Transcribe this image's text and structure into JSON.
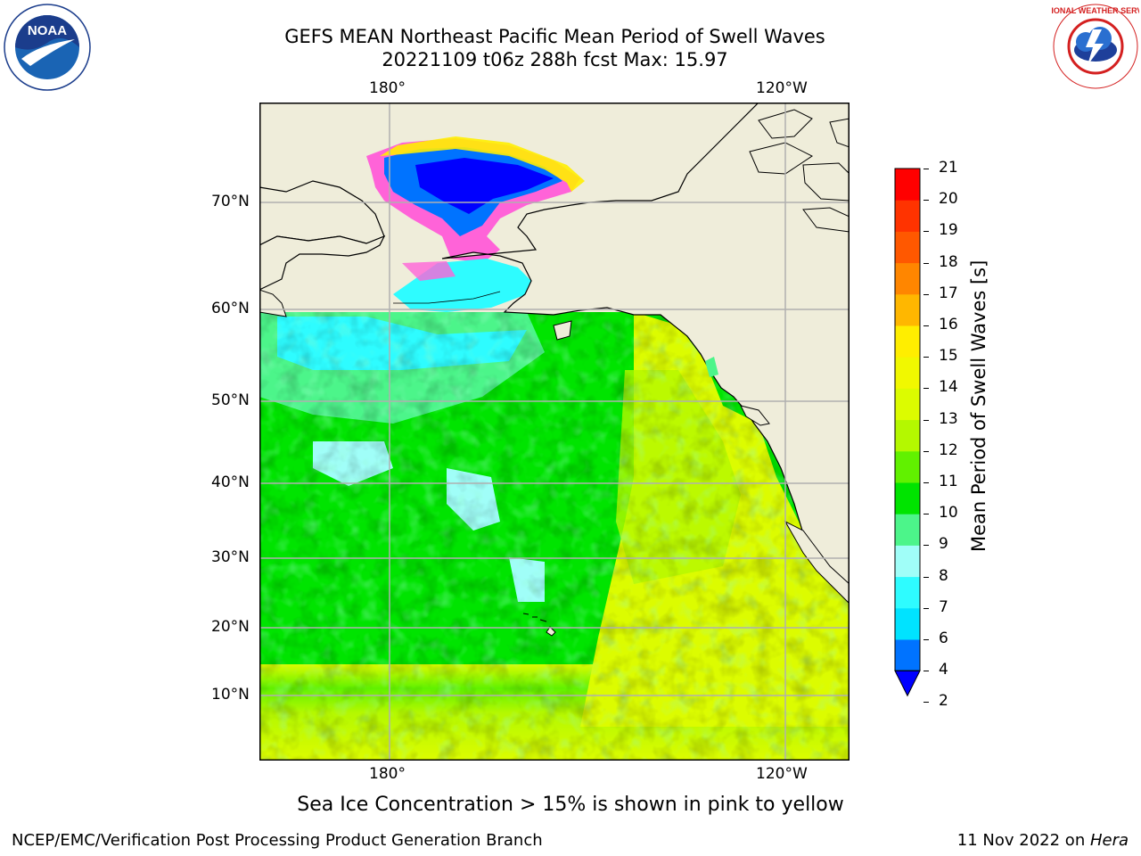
{
  "header": {
    "title_line1": "GEFS MEAN Northeast Pacific Mean Period of Swell Waves",
    "title_line2": "20221109 t06z 288h fcst   Max: 15.97"
  },
  "logos": {
    "noaa_text": "NOAA",
    "noaa_ring": "NATIONAL OCEANIC AND ATMOSPHERIC ADMINISTRATION · U.S. DEPARTMENT OF COMMERCE",
    "nws_ring": "NATIONAL WEATHER SERVICE"
  },
  "map": {
    "lon_labels_top": [
      "180°",
      "120°W"
    ],
    "lon_labels_bottom": [
      "180°",
      "120°W"
    ],
    "lat_labels": [
      "70°N",
      "60°N",
      "50°N",
      "40°N",
      "30°N",
      "20°N",
      "10°N"
    ],
    "colors": {
      "land": "#efedda",
      "coast": "#000000",
      "grid": "#b0b0b0"
    }
  },
  "colorbar": {
    "label": "Mean Period of Swell Waves [s]",
    "ticks": [
      "21",
      "20",
      "19",
      "18",
      "17",
      "16",
      "15",
      "14",
      "13",
      "12",
      "11",
      "10",
      "9",
      "8",
      "7",
      "6",
      "4",
      "2"
    ],
    "colors_bottom_to_top": [
      "#0073ff",
      "#00e3ff",
      "#2efcff",
      "#a0fef8",
      "#4cf58a",
      "#00e400",
      "#61f100",
      "#b4f800",
      "#dcfc00",
      "#f1f800",
      "#ffee00",
      "#ffb700",
      "#ff8600",
      "#ff5800",
      "#ff3300",
      "#ff0000"
    ],
    "arrow_color": "#0000ff"
  },
  "caption": "Sea Ice Concentration > 15% is shown in pink to yellow",
  "footer": {
    "left": "NCEP/EMC/Verification Post Processing Product Generation Branch",
    "right_prefix": "11 Nov 2022 on ",
    "right_host": "Hera"
  }
}
